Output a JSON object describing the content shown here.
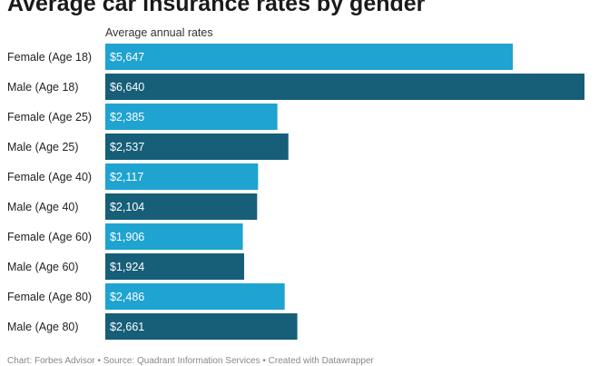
{
  "title": "Average car insurance rates by gender",
  "subtitle": "Average annual rates",
  "footer": "Chart: Forbes Advisor • Source: Quadrant Information Services • Created with Datawrapper",
  "colors": {
    "female": "#1fa3d0",
    "male": "#175e78"
  },
  "chart_data": {
    "type": "bar",
    "orientation": "horizontal",
    "title": "Average car insurance rates by gender",
    "subtitle": "Average annual rates",
    "categories": [
      "Female (Age 18)",
      "Male (Age 18)",
      "Female (Age 25)",
      "Male (Age 25)",
      "Female (Age 40)",
      "Male (Age 40)",
      "Female (Age 60)",
      "Male (Age 60)",
      "Female (Age 80)",
      "Male (Age 80)"
    ],
    "values": [
      5647,
      6640,
      2385,
      2537,
      2117,
      2104,
      1906,
      1924,
      2486,
      2661
    ],
    "value_labels": [
      "$5,647",
      "$6,640",
      "$2,385",
      "$2,537",
      "$2,117",
      "$2,104",
      "$1,906",
      "$1,924",
      "$2,486",
      "$2,661"
    ],
    "xlim": [
      0,
      6640
    ],
    "grid": false,
    "legend": "none"
  }
}
